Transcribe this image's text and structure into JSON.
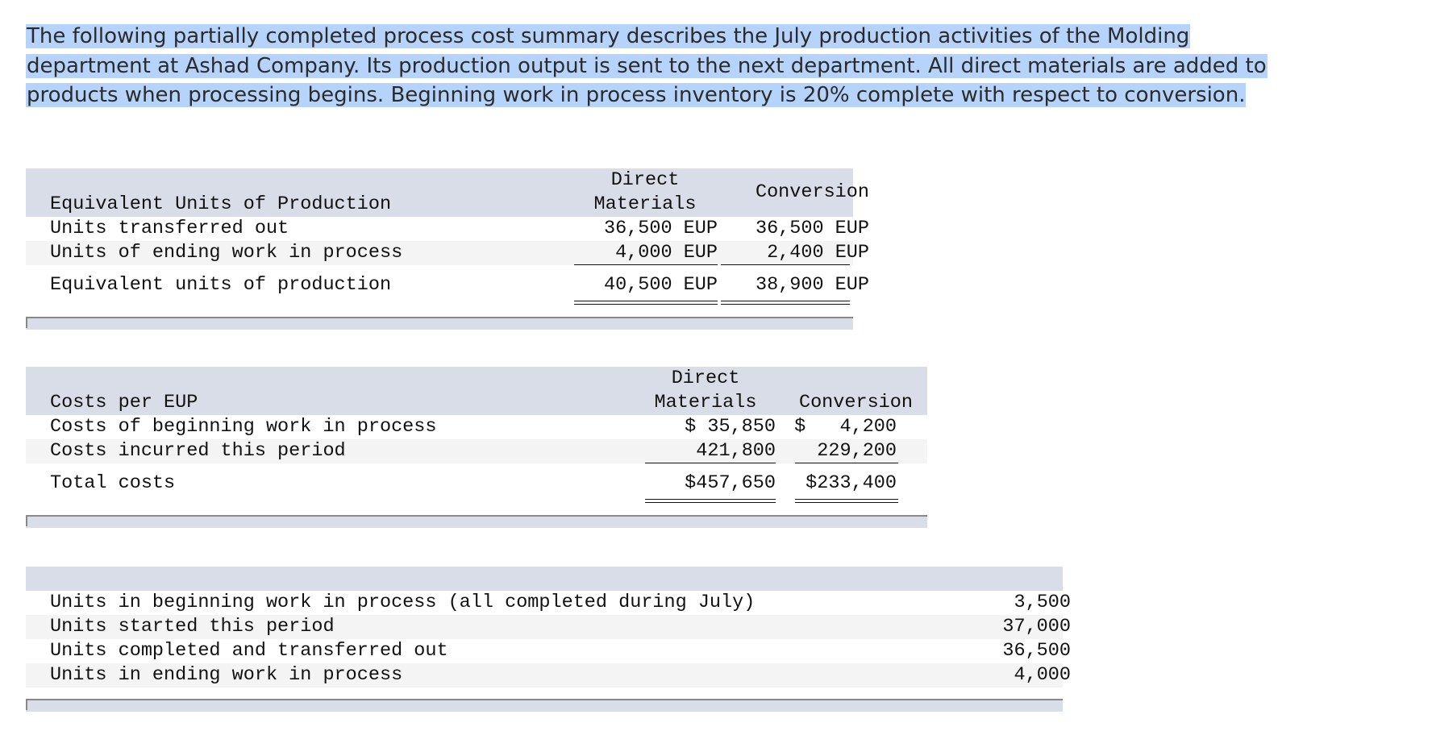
{
  "intro": {
    "lines": [
      "The following partially completed process cost summary describes the July production activities of the Molding",
      "department at Ashad Company. Its production output is sent to the next department. All direct materials are added to",
      "products when processing begins. Beginning work in process inventory is 20% complete with respect to conversion."
    ]
  },
  "eup_table": {
    "header_dm_line1": "Direct",
    "header_dm_line2": "Materials",
    "header_conv": "Conversion",
    "title": "Equivalent Units of Production",
    "rows": [
      {
        "label": "Units transferred out",
        "dm": "36,500 EUP",
        "conv": "36,500 EUP"
      },
      {
        "label": "Units of ending work in process",
        "dm": "4,000 EUP",
        "conv": "2,400 EUP"
      }
    ],
    "total": {
      "label": "Equivalent units of production",
      "dm": "40,500 EUP",
      "conv": "38,900 EUP"
    }
  },
  "cost_table": {
    "header_dm_line1": "Direct",
    "header_dm_line2": "Materials",
    "header_conv": "Conversion",
    "title": "Costs per EUP",
    "rows": [
      {
        "label": "Costs of beginning work in process",
        "dm": "$ 35,850",
        "conv": "$   4,200"
      },
      {
        "label": "Costs incurred this period",
        "dm": "421,800",
        "conv": "229,200"
      }
    ],
    "total": {
      "label": "Total costs",
      "dm": "$457,650",
      "conv": "$233,400"
    }
  },
  "units_table": {
    "rows": [
      {
        "label": "Units in beginning work in process (all completed during July)",
        "value": "3,500"
      },
      {
        "label": "Units started this period",
        "value": "37,000"
      },
      {
        "label": "Units completed and transferred out",
        "value": "36,500"
      },
      {
        "label": "Units in ending work in process",
        "value": "4,000"
      }
    ]
  }
}
